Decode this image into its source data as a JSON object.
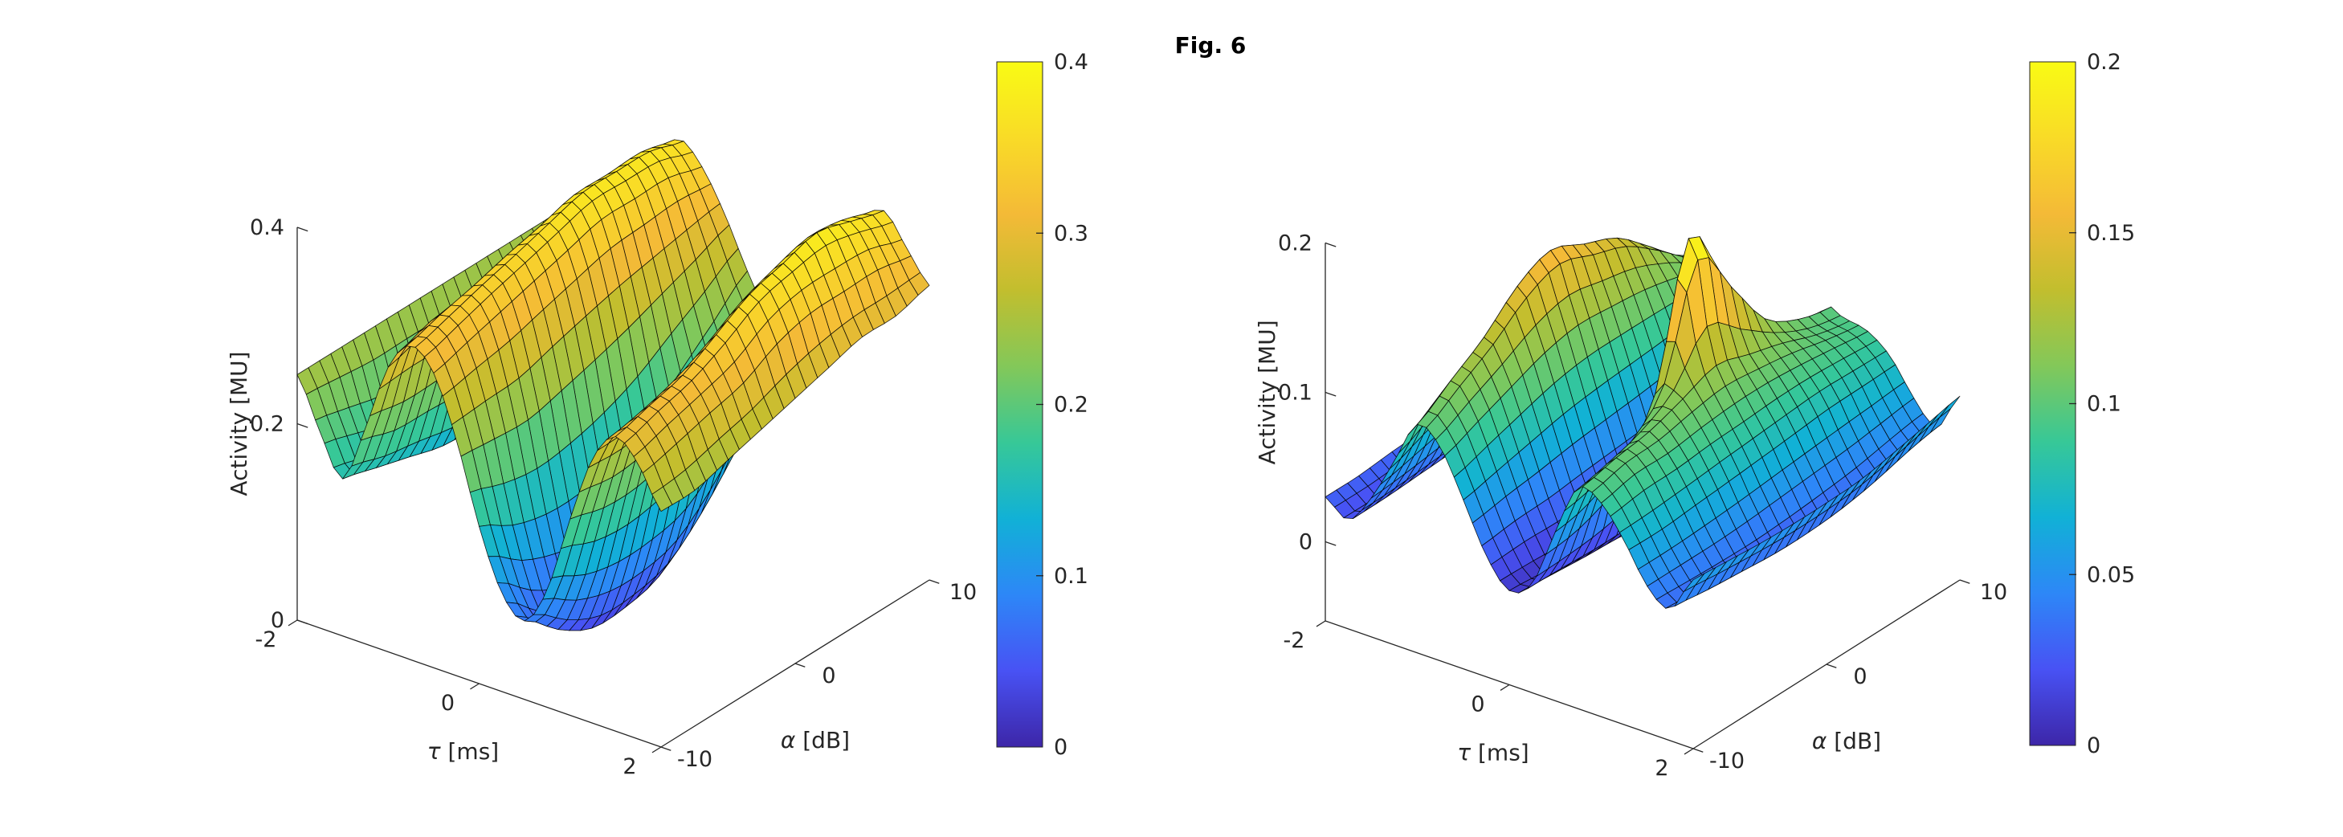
{
  "figure": {
    "title": "Fig. 6",
    "background": "#ffffff",
    "text_color": "#262626"
  },
  "colormap": {
    "name": "parula",
    "stops": [
      "#3d26a8",
      "#4852f4",
      "#2d87f7",
      "#11b1d6",
      "#37c897",
      "#83c859",
      "#c2be2e",
      "#f4ba37",
      "#f9db27",
      "#f9fb14"
    ]
  },
  "chart_data": [
    {
      "type": "surface",
      "title": "",
      "xlabel_symbol": "τ",
      "xlabel_rest": " [ms]",
      "ylabel_symbol": "α",
      "ylabel_rest": " [dB]",
      "zlabel": "Activity [MU]",
      "x": [
        -2,
        -1.75,
        -1.5,
        -1.25,
        -1,
        -0.75,
        -0.5,
        -0.25,
        0,
        0.25,
        0.5,
        0.75,
        1,
        1.25,
        1.5,
        1.75,
        2
      ],
      "y": [
        -10,
        -7.5,
        -5,
        -2.5,
        0,
        2.5,
        5,
        7.5,
        10
      ],
      "xlim": [
        -2,
        2
      ],
      "ylim": [
        -10,
        10
      ],
      "zlim": [
        0,
        0.4
      ],
      "clim": [
        0,
        0.4
      ],
      "x_ticks": [
        -2,
        0,
        2
      ],
      "y_ticks": [
        -10,
        0,
        10
      ],
      "z_ticks": [
        0,
        0.2,
        0.4
      ],
      "colorbar_ticks": [
        0,
        0.1,
        0.2,
        0.3,
        0.4
      ],
      "grid": false,
      "legend": "colorbar-right",
      "z_rows_by_y": [
        [
          0.25,
          0.2,
          0.16,
          0.22,
          0.29,
          0.32,
          0.3,
          0.24,
          0.16,
          0.1,
          0.08,
          0.12,
          0.2,
          0.27,
          0.3,
          0.28,
          0.24
        ],
        [
          0.25,
          0.19,
          0.15,
          0.21,
          0.3,
          0.33,
          0.31,
          0.24,
          0.14,
          0.07,
          0.05,
          0.1,
          0.19,
          0.27,
          0.31,
          0.29,
          0.24
        ],
        [
          0.25,
          0.18,
          0.14,
          0.21,
          0.3,
          0.34,
          0.32,
          0.24,
          0.13,
          0.05,
          0.03,
          0.09,
          0.19,
          0.28,
          0.32,
          0.3,
          0.25
        ],
        [
          0.25,
          0.18,
          0.13,
          0.21,
          0.31,
          0.35,
          0.33,
          0.25,
          0.13,
          0.04,
          0.03,
          0.09,
          0.2,
          0.29,
          0.34,
          0.31,
          0.26
        ],
        [
          0.25,
          0.18,
          0.13,
          0.21,
          0.31,
          0.36,
          0.34,
          0.26,
          0.14,
          0.05,
          0.04,
          0.1,
          0.21,
          0.31,
          0.36,
          0.33,
          0.27
        ],
        [
          0.25,
          0.19,
          0.14,
          0.22,
          0.32,
          0.37,
          0.35,
          0.27,
          0.16,
          0.08,
          0.07,
          0.13,
          0.24,
          0.33,
          0.37,
          0.34,
          0.28
        ],
        [
          0.25,
          0.2,
          0.16,
          0.23,
          0.32,
          0.37,
          0.35,
          0.28,
          0.19,
          0.12,
          0.11,
          0.17,
          0.26,
          0.34,
          0.38,
          0.34,
          0.29
        ],
        [
          0.25,
          0.21,
          0.18,
          0.25,
          0.33,
          0.37,
          0.35,
          0.29,
          0.22,
          0.17,
          0.16,
          0.21,
          0.28,
          0.35,
          0.37,
          0.34,
          0.29
        ],
        [
          0.25,
          0.22,
          0.2,
          0.26,
          0.33,
          0.36,
          0.34,
          0.3,
          0.25,
          0.21,
          0.2,
          0.24,
          0.29,
          0.34,
          0.36,
          0.33,
          0.3
        ]
      ]
    },
    {
      "type": "surface",
      "title": "",
      "xlabel_symbol": "τ",
      "xlabel_rest": " [ms]",
      "ylabel_symbol": "α",
      "ylabel_rest": " [dB]",
      "zlabel": "Activity [MU]",
      "x": [
        -2,
        -1.75,
        -1.5,
        -1.25,
        -1,
        -0.75,
        -0.5,
        -0.25,
        0,
        0.25,
        0.5,
        0.75,
        1,
        1.25,
        1.5,
        1.75,
        2
      ],
      "y": [
        -10,
        -7.5,
        -5,
        -2.5,
        0,
        2.5,
        5,
        7.5,
        10
      ],
      "xlim": [
        -2,
        2
      ],
      "ylim": [
        -10,
        10
      ],
      "zlim": [
        -0.053,
        0.2
      ],
      "clim": [
        0,
        0.2
      ],
      "x_ticks": [
        -2,
        0,
        2
      ],
      "y_ticks": [
        -10,
        0,
        10
      ],
      "z_ticks": [
        0,
        0.1,
        0.2
      ],
      "colorbar_ticks": [
        0,
        0.05,
        0.1,
        0.15,
        0.2
      ],
      "grid": false,
      "legend": "colorbar-right",
      "z_rows_by_y": [
        [
          0.03,
          0.02,
          0.04,
          0.07,
          0.1,
          0.09,
          0.06,
          0.028,
          0.01,
          0.02,
          0.06,
          0.095,
          0.09,
          0.07,
          0.045,
          0.035,
          0.06
        ],
        [
          0.03,
          0.02,
          0.042,
          0.08,
          0.115,
          0.1,
          0.065,
          0.03,
          0.008,
          0.02,
          0.065,
          0.1,
          0.095,
          0.07,
          0.045,
          0.032,
          0.058
        ],
        [
          0.032,
          0.021,
          0.045,
          0.09,
          0.13,
          0.11,
          0.07,
          0.03,
          0.006,
          0.02,
          0.08,
          0.105,
          0.095,
          0.072,
          0.045,
          0.03,
          0.056
        ],
        [
          0.033,
          0.022,
          0.048,
          0.1,
          0.15,
          0.12,
          0.075,
          0.032,
          0.005,
          0.022,
          0.11,
          0.115,
          0.098,
          0.074,
          0.046,
          0.028,
          0.055
        ],
        [
          0.034,
          0.023,
          0.05,
          0.105,
          0.16,
          0.125,
          0.078,
          0.034,
          0.005,
          0.025,
          0.2,
          0.13,
          0.1,
          0.076,
          0.048,
          0.028,
          0.055
        ],
        [
          0.035,
          0.024,
          0.05,
          0.102,
          0.15,
          0.122,
          0.08,
          0.036,
          0.006,
          0.024,
          0.16,
          0.12,
          0.1,
          0.078,
          0.05,
          0.03,
          0.056
        ],
        [
          0.036,
          0.025,
          0.048,
          0.098,
          0.14,
          0.118,
          0.082,
          0.04,
          0.01,
          0.024,
          0.115,
          0.11,
          0.098,
          0.08,
          0.052,
          0.034,
          0.06
        ],
        [
          0.037,
          0.026,
          0.046,
          0.092,
          0.12,
          0.11,
          0.085,
          0.045,
          0.015,
          0.026,
          0.1,
          0.1,
          0.095,
          0.08,
          0.055,
          0.04,
          0.065
        ],
        [
          0.038,
          0.027,
          0.045,
          0.088,
          0.1,
          0.1,
          0.088,
          0.05,
          0.02,
          0.03,
          0.095,
          0.095,
          0.092,
          0.08,
          0.058,
          0.044,
          0.07
        ]
      ]
    }
  ]
}
